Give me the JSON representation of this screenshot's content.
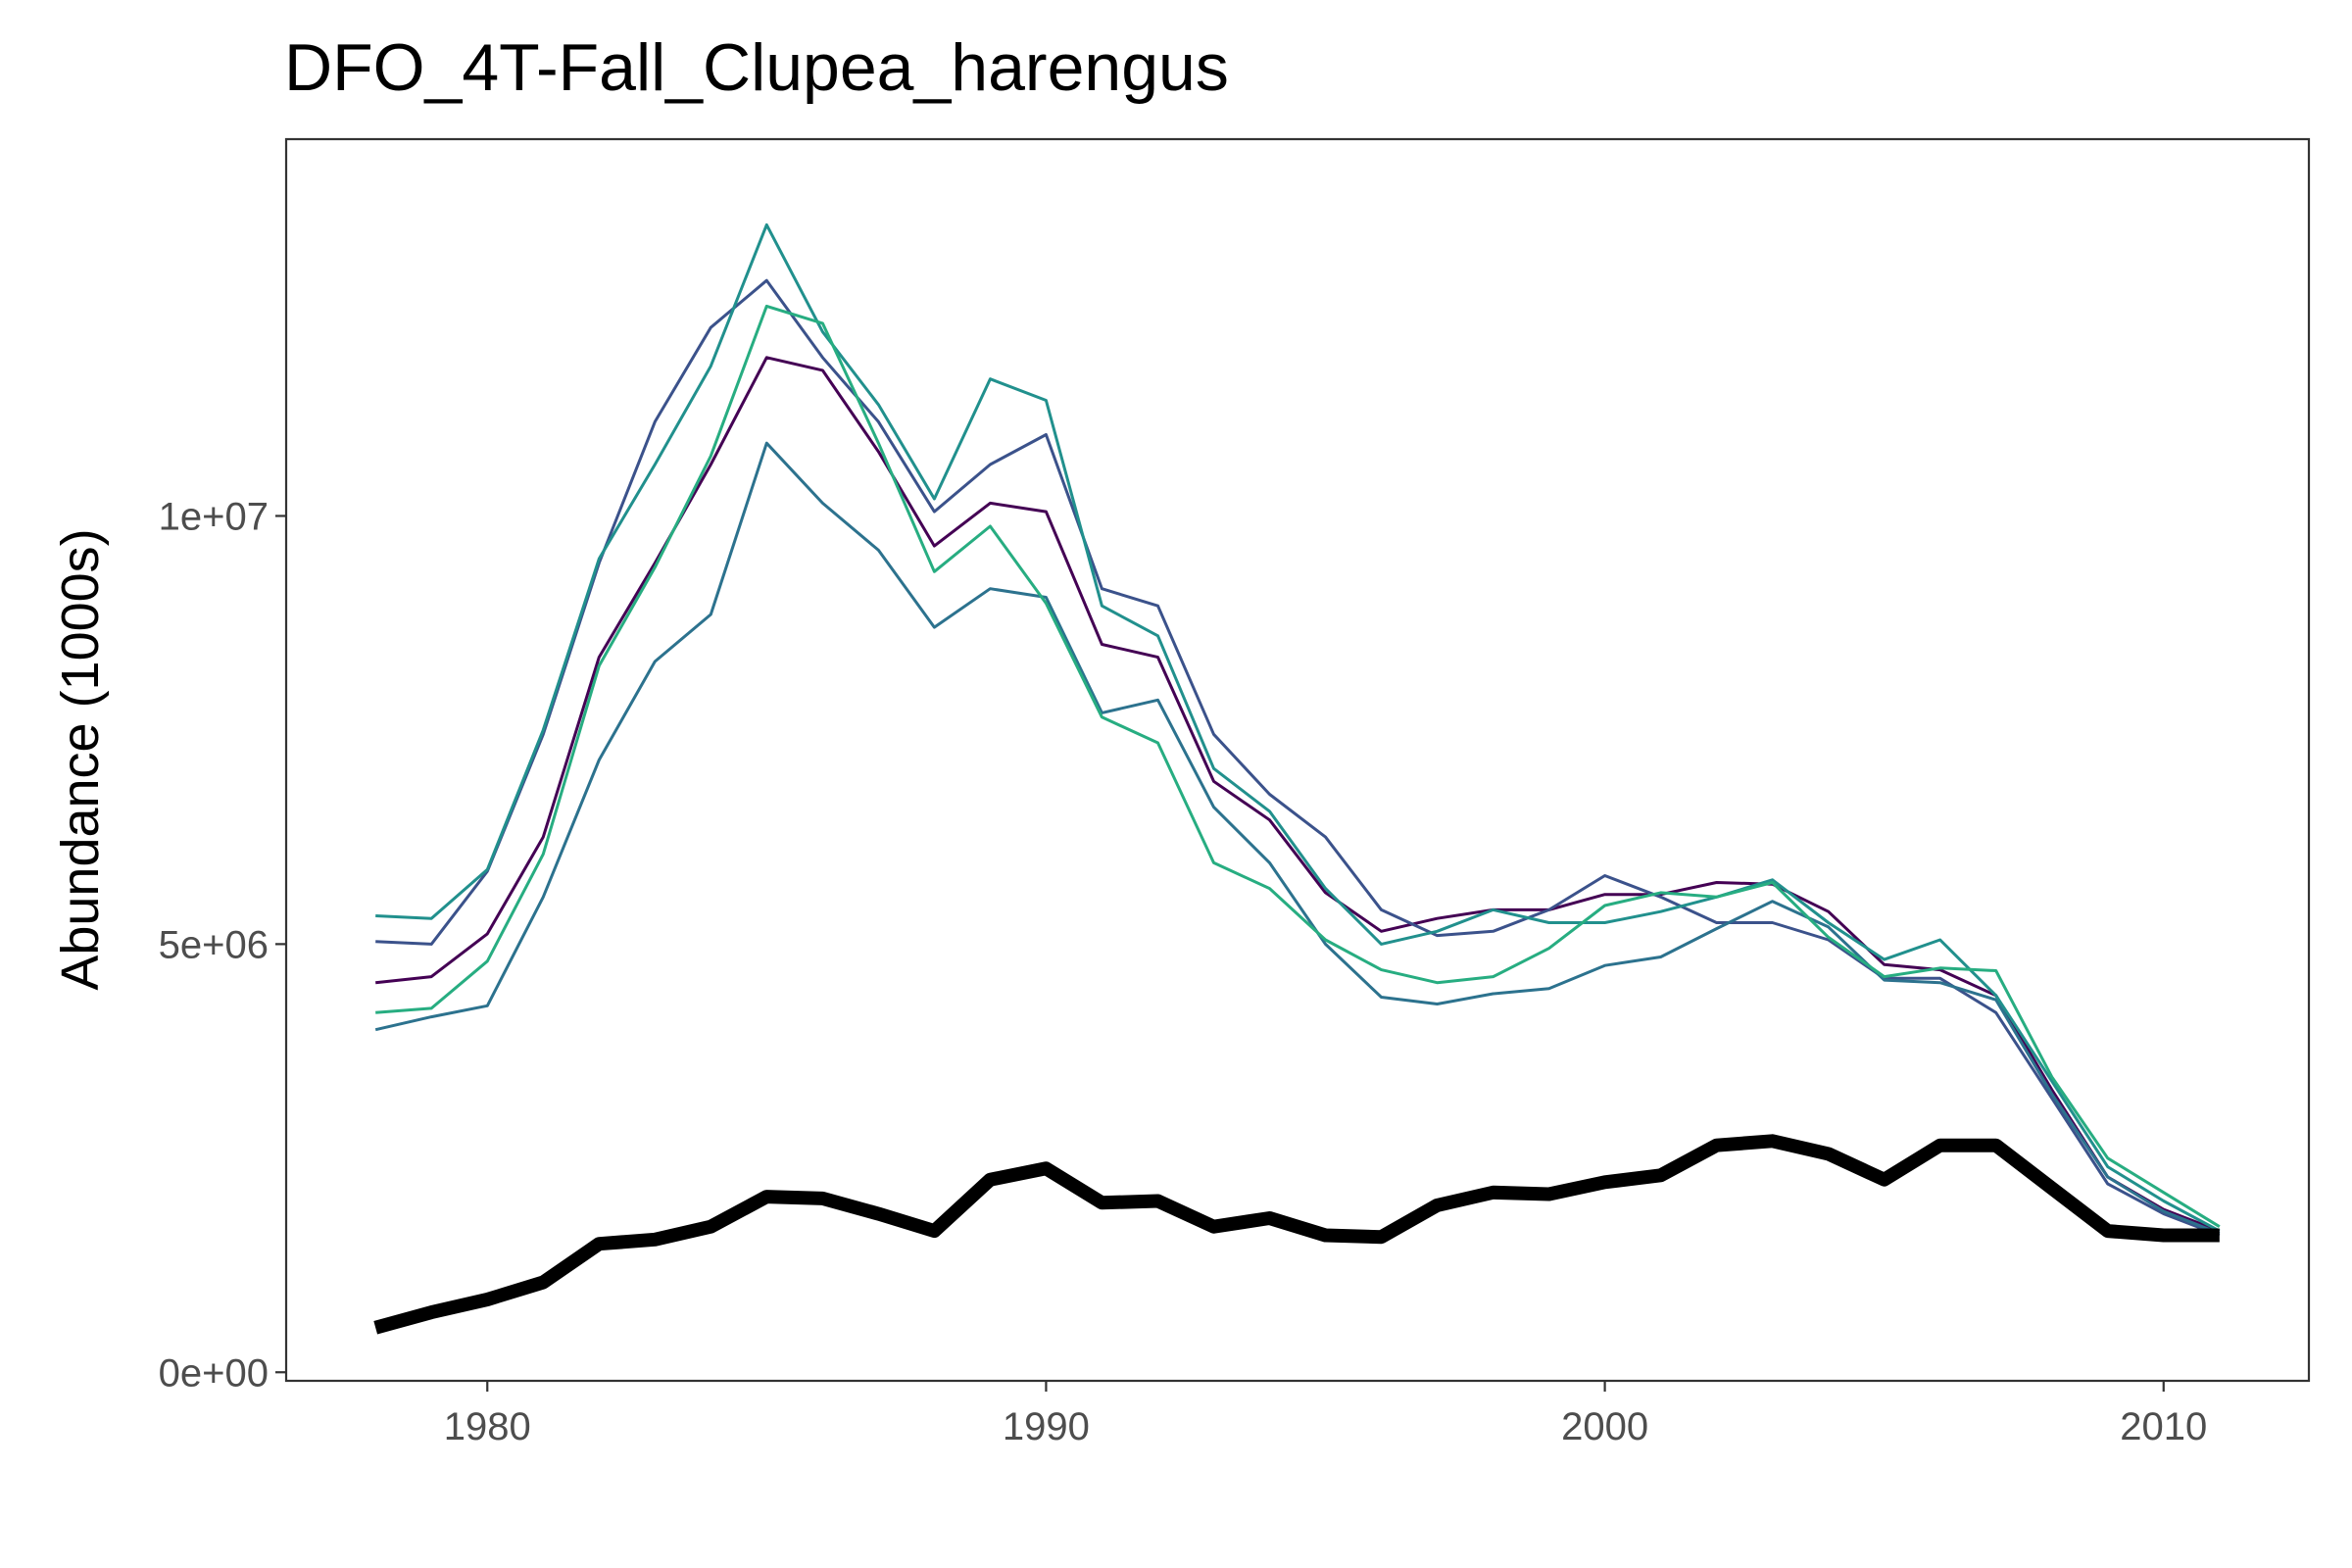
{
  "chart_data": {
    "type": "line",
    "title": "DFO_4T-Fall_Clupea_harengus",
    "xlabel": "",
    "ylabel": "Abundance (1000s)",
    "xlim": [
      1976.4,
      2012.6
    ],
    "ylim": [
      -100000,
      14400000
    ],
    "xticks": [
      1980,
      1990,
      2000,
      2010
    ],
    "xtick_labels": [
      "1980",
      "1990",
      "2000",
      "2010"
    ],
    "yticks": [
      0,
      5000000,
      10000000
    ],
    "ytick_labels": [
      "0e+00",
      "5e+06",
      "1e+07"
    ],
    "grid": false,
    "legend": "none",
    "x": [
      1978,
      1979,
      1980,
      1981,
      1982,
      1983,
      1984,
      1985,
      1986,
      1987,
      1988,
      1989,
      1990,
      1991,
      1992,
      1993,
      1994,
      1995,
      1996,
      1997,
      1998,
      1999,
      2000,
      2001,
      2002,
      2003,
      2004,
      2005,
      2006,
      2007,
      2008,
      2009,
      2010,
      2011
    ],
    "series": [
      {
        "color": "#440154",
        "width": 3,
        "values": [
          4550000,
          4620000,
          5120000,
          6250000,
          8350000,
          9450000,
          10600000,
          11850000,
          11700000,
          10750000,
          9650000,
          10150000,
          10050000,
          8500000,
          8350000,
          6900000,
          6450000,
          5600000,
          5150000,
          5300000,
          5400000,
          5400000,
          5580000,
          5580000,
          5720000,
          5700000,
          5380000,
          4760000,
          4700000,
          4400000,
          3300000,
          2280000,
          1900000,
          1650000
        ]
      },
      {
        "color": "#3b528b",
        "width": 3,
        "values": [
          5030000,
          5000000,
          5850000,
          7450000,
          9450000,
          11100000,
          12200000,
          12750000,
          11850000,
          11100000,
          10050000,
          10600000,
          10950000,
          9150000,
          8950000,
          7450000,
          6750000,
          6250000,
          5400000,
          5100000,
          5150000,
          5400000,
          5800000,
          5550000,
          5250000,
          5250000,
          5050000,
          4600000,
          4600000,
          4200000,
          3200000,
          2200000,
          1850000,
          1600000
        ]
      },
      {
        "color": "#2c728e",
        "width": 3,
        "values": [
          4000000,
          4150000,
          4280000,
          5550000,
          7150000,
          8300000,
          8850000,
          10850000,
          10150000,
          9600000,
          8700000,
          9150000,
          9050000,
          7700000,
          7850000,
          6600000,
          5950000,
          5000000,
          4380000,
          4300000,
          4420000,
          4480000,
          4750000,
          4850000,
          5180000,
          5500000,
          5200000,
          4580000,
          4550000,
          4350000,
          3250000,
          2280000,
          1880000,
          1620000
        ]
      },
      {
        "color": "#21908d",
        "width": 3,
        "values": [
          5330000,
          5300000,
          5870000,
          7500000,
          9500000,
          10600000,
          11750000,
          13400000,
          12150000,
          11300000,
          10200000,
          11600000,
          11350000,
          8950000,
          8600000,
          7050000,
          6550000,
          5650000,
          5000000,
          5150000,
          5400000,
          5250000,
          5250000,
          5380000,
          5550000,
          5750000,
          5250000,
          4820000,
          5050000,
          4400000,
          3400000,
          2400000,
          2000000,
          1650000
        ]
      },
      {
        "color": "#27ad81",
        "width": 3,
        "values": [
          4200000,
          4250000,
          4800000,
          6050000,
          8250000,
          9400000,
          10700000,
          12450000,
          12250000,
          10850000,
          9350000,
          9880000,
          8980000,
          7650000,
          7350000,
          5950000,
          5650000,
          5050000,
          4700000,
          4550000,
          4620000,
          4950000,
          5450000,
          5600000,
          5550000,
          5720000,
          5080000,
          4620000,
          4720000,
          4690000,
          3450000,
          2500000,
          2100000,
          1700000
        ]
      },
      {
        "color": "#000000",
        "width": 14,
        "values": [
          520000,
          700000,
          850000,
          1050000,
          1500000,
          1550000,
          1700000,
          2050000,
          2030000,
          1850000,
          1650000,
          2250000,
          2380000,
          1980000,
          2000000,
          1700000,
          1800000,
          1600000,
          1580000,
          1950000,
          2100000,
          2080000,
          2220000,
          2300000,
          2650000,
          2700000,
          2550000,
          2250000,
          2650000,
          2650000,
          2150000,
          1650000,
          1600000,
          1600000
        ]
      }
    ]
  }
}
